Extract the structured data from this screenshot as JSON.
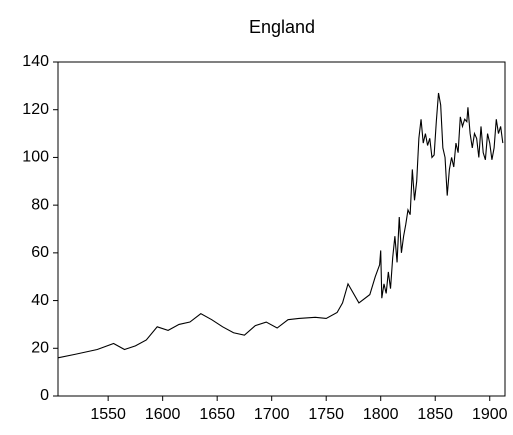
{
  "chart_data": {
    "type": "line",
    "title": "England",
    "x": [
      1504,
      1520,
      1540,
      1555,
      1565,
      1575,
      1585,
      1595,
      1605,
      1615,
      1625,
      1635,
      1645,
      1655,
      1665,
      1675,
      1685,
      1695,
      1705,
      1715,
      1725,
      1740,
      1750,
      1760,
      1765,
      1770,
      1780,
      1790,
      1795,
      1799,
      1800,
      1801,
      1803,
      1805,
      1807,
      1809,
      1811,
      1813,
      1815,
      1817,
      1819,
      1821,
      1823,
      1825,
      1827,
      1829,
      1831,
      1833,
      1835,
      1837,
      1839,
      1841,
      1843,
      1845,
      1847,
      1849,
      1851,
      1853,
      1855,
      1857,
      1859,
      1861,
      1863,
      1865,
      1867,
      1869,
      1871,
      1873,
      1875,
      1877,
      1879,
      1880,
      1882,
      1884,
      1886,
      1888,
      1890,
      1892,
      1894,
      1896,
      1898,
      1900,
      1902,
      1904,
      1906,
      1908,
      1910,
      1912
    ],
    "series": [
      {
        "color": "#000000",
        "values": [
          16,
          17.5,
          19.5,
          22,
          19.5,
          21,
          23.5,
          29,
          27.5,
          30,
          31,
          34.5,
          32,
          29,
          26.5,
          25.5,
          29.5,
          31,
          28.5,
          32,
          32.5,
          33,
          32.5,
          35,
          39,
          47,
          39,
          42.5,
          50,
          55,
          61,
          41,
          47,
          43,
          52,
          45,
          58,
          67,
          56,
          75,
          60,
          67,
          72,
          78,
          76,
          95,
          82,
          90,
          108,
          116,
          106,
          110,
          105,
          108,
          100,
          101,
          115,
          127,
          122,
          104,
          100,
          84,
          95,
          100,
          96,
          106,
          102,
          117,
          113,
          116,
          115,
          121,
          110,
          104,
          110,
          108,
          100,
          113,
          102,
          99,
          110,
          106,
          99,
          104,
          116,
          110,
          113,
          106
        ]
      }
    ],
    "xlim": [
      1504,
      1914
    ],
    "ylim": [
      0,
      140
    ],
    "xticks": [
      1550,
      1600,
      1650,
      1700,
      1750,
      1800,
      1850,
      1900
    ],
    "yticks": [
      0,
      20,
      40,
      60,
      80,
      100,
      120,
      140
    ]
  }
}
